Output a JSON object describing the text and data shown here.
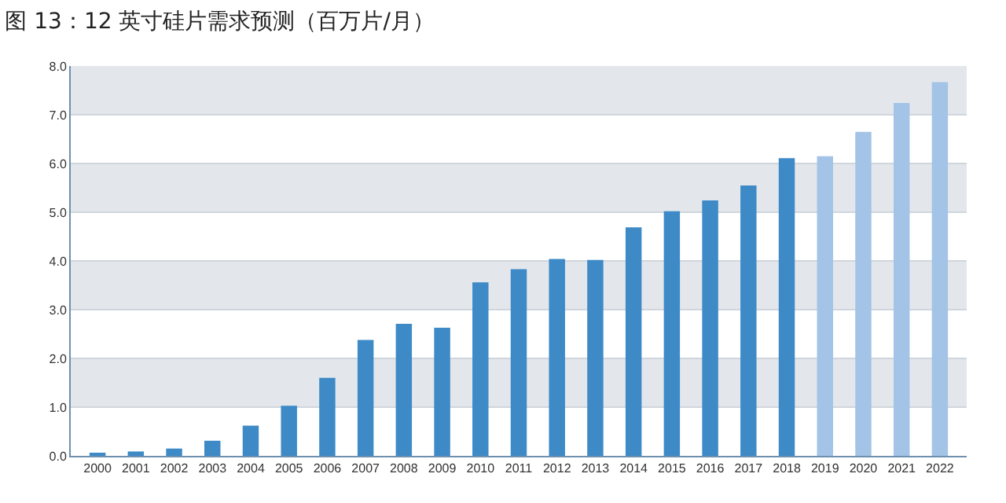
{
  "chart_data": {
    "type": "bar",
    "title": "图 13：12 英寸硅片需求预测（百万片/月）",
    "categories": [
      "2000",
      "2001",
      "2002",
      "2003",
      "2004",
      "2005",
      "2006",
      "2007",
      "2008",
      "2009",
      "2010",
      "2011",
      "2012",
      "2013",
      "2014",
      "2015",
      "2016",
      "2017",
      "2018",
      "2019",
      "2020",
      "2021",
      "2022"
    ],
    "values": [
      0.04,
      0.09,
      0.15,
      0.31,
      0.62,
      1.03,
      1.6,
      2.38,
      2.71,
      2.63,
      3.56,
      3.83,
      4.04,
      4.02,
      4.69,
      5.02,
      5.24,
      5.55,
      6.11,
      6.15,
      6.65,
      7.24,
      7.67
    ],
    "colors": [
      "#3d8ac7",
      "#3d8ac7",
      "#3d8ac7",
      "#3d8ac7",
      "#3d8ac7",
      "#3d8ac7",
      "#3d8ac7",
      "#3d8ac7",
      "#3d8ac7",
      "#3d8ac7",
      "#3d8ac7",
      "#3d8ac7",
      "#3d8ac7",
      "#3d8ac7",
      "#3d8ac7",
      "#3d8ac7",
      "#3d8ac7",
      "#3d8ac7",
      "#3d8ac7",
      "#a3c4e6",
      "#a3c4e6",
      "#a3c4e6",
      "#a3c4e6"
    ],
    "ylim": [
      0,
      8
    ],
    "yticks": [
      {
        "value": 0,
        "label": "0.0"
      },
      {
        "value": 1,
        "label": "1.0"
      },
      {
        "value": 2,
        "label": "2.0"
      },
      {
        "value": 3,
        "label": "3.0"
      },
      {
        "value": 4,
        "label": "4.0"
      },
      {
        "value": 5,
        "label": "5.0"
      },
      {
        "value": 6,
        "label": "6.0"
      },
      {
        "value": 7,
        "label": "7.0"
      },
      {
        "value": 8,
        "label": "8.0"
      }
    ],
    "grid": "y"
  }
}
